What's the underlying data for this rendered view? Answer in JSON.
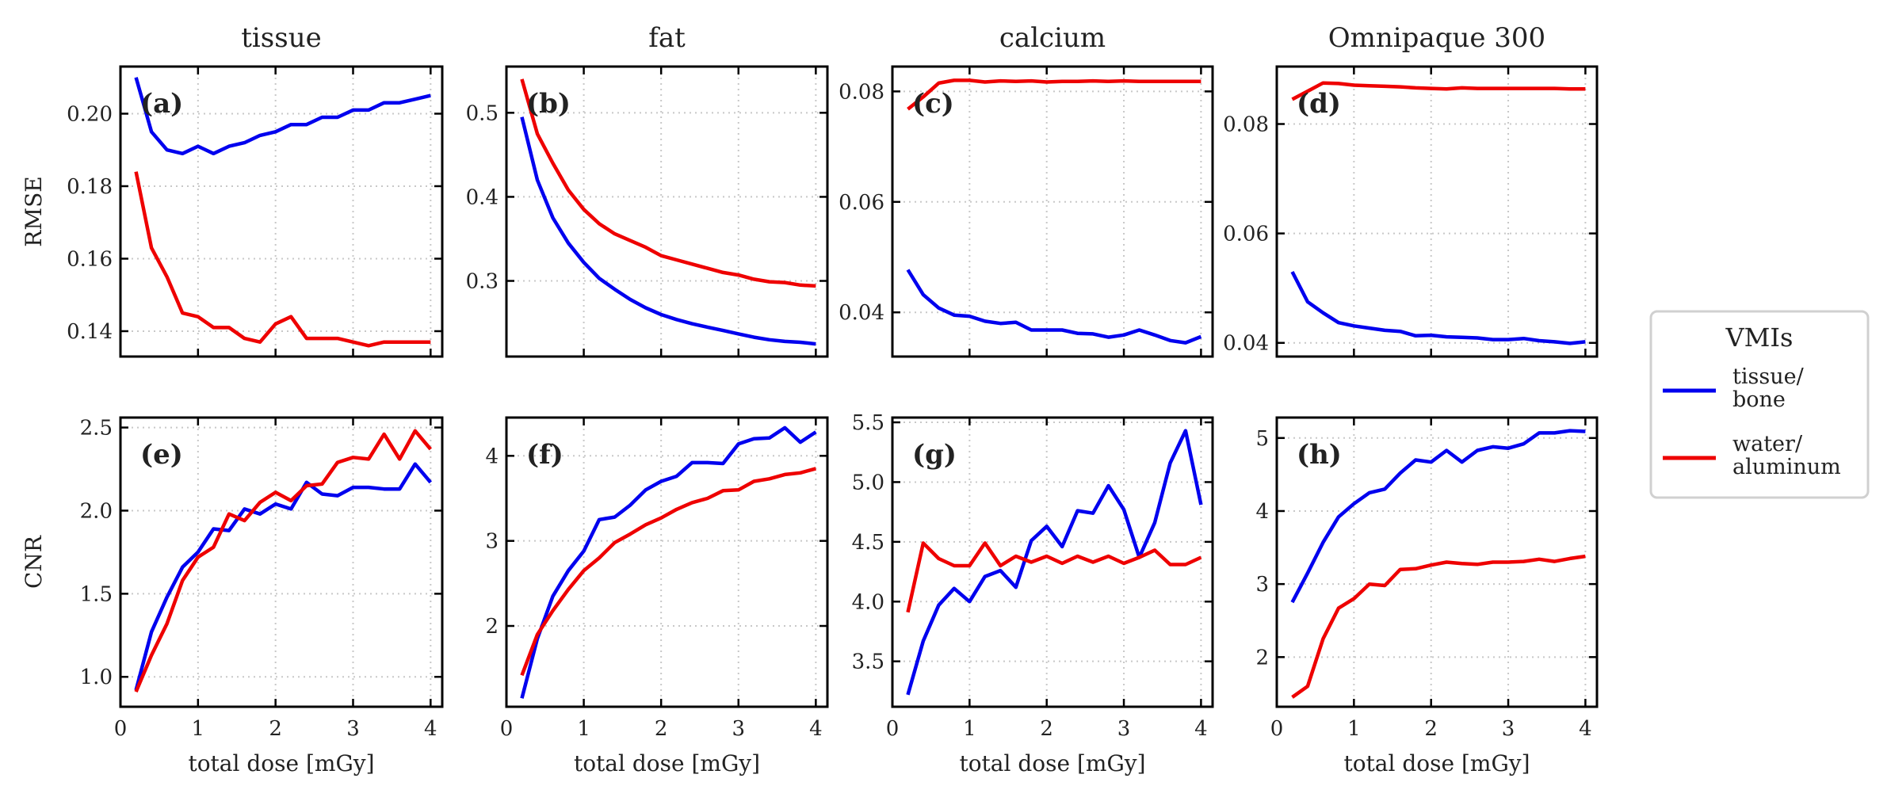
{
  "chart_data": {
    "type": "line",
    "legend": {
      "title": "VMIs",
      "placement": "right",
      "entries": [
        {
          "label_lines": [
            "tissue/",
            "bone"
          ],
          "color": "#0000ee"
        },
        {
          "label_lines": [
            "water/",
            "aluminum"
          ],
          "color": "#ee0000"
        }
      ]
    },
    "x_label": "total dose [mGy]",
    "grid": true,
    "panels": [
      {
        "letter": "(a)",
        "title": "tissue",
        "ylabel": "RMSE",
        "xlim": [
          0,
          4.15
        ],
        "ylim": [
          0.133,
          0.213
        ],
        "yticks": [
          0.14,
          0.16,
          0.18,
          0.2
        ],
        "ytick_labels": [
          "0.14",
          "0.16",
          "0.18",
          "0.20"
        ],
        "xticks": [
          0,
          1,
          2,
          3,
          4
        ],
        "xtick_labels": [],
        "series": [
          {
            "color": "#0000ee",
            "x": [
              0.2,
              0.4,
              0.6,
              0.8,
              1.0,
              1.2,
              1.4,
              1.6,
              1.8,
              2.0,
              2.2,
              2.4,
              2.6,
              2.8,
              3.0,
              3.2,
              3.4,
              3.6,
              3.8,
              4.0
            ],
            "y": [
              0.21,
              0.195,
              0.19,
              0.189,
              0.191,
              0.189,
              0.191,
              0.192,
              0.194,
              0.195,
              0.197,
              0.197,
              0.199,
              0.199,
              0.201,
              0.201,
              0.203,
              0.203,
              0.204,
              0.205
            ]
          },
          {
            "color": "#ee0000",
            "x": [
              0.2,
              0.4,
              0.6,
              0.8,
              1.0,
              1.2,
              1.4,
              1.6,
              1.8,
              2.0,
              2.2,
              2.4,
              2.6,
              2.8,
              3.0,
              3.2,
              3.4,
              3.6,
              3.8,
              4.0
            ],
            "y": [
              0.184,
              0.163,
              0.155,
              0.145,
              0.144,
              0.141,
              0.141,
              0.138,
              0.137,
              0.142,
              0.144,
              0.138,
              0.138,
              0.138,
              0.137,
              0.136,
              0.137,
              0.137,
              0.137,
              0.137
            ]
          }
        ]
      },
      {
        "letter": "(b)",
        "title": "fat",
        "ylabel": "",
        "xlim": [
          0,
          4.15
        ],
        "ylim": [
          0.21,
          0.555
        ],
        "yticks": [
          0.3,
          0.4,
          0.5
        ],
        "ytick_labels": [
          "0.3",
          "0.4",
          "0.5"
        ],
        "xticks": [
          0,
          1,
          2,
          3,
          4
        ],
        "xtick_labels": [],
        "series": [
          {
            "color": "#0000ee",
            "x": [
              0.2,
              0.4,
              0.6,
              0.8,
              1.0,
              1.2,
              1.4,
              1.6,
              1.8,
              2.0,
              2.2,
              2.4,
              2.6,
              2.8,
              3.0,
              3.2,
              3.4,
              3.6,
              3.8,
              4.0
            ],
            "y": [
              0.495,
              0.42,
              0.375,
              0.345,
              0.322,
              0.303,
              0.29,
              0.278,
              0.268,
              0.26,
              0.254,
              0.249,
              0.245,
              0.241,
              0.237,
              0.233,
              0.23,
              0.228,
              0.227,
              0.225
            ]
          },
          {
            "color": "#ee0000",
            "x": [
              0.2,
              0.4,
              0.6,
              0.8,
              1.0,
              1.2,
              1.4,
              1.6,
              1.8,
              2.0,
              2.2,
              2.4,
              2.6,
              2.8,
              3.0,
              3.2,
              3.4,
              3.6,
              3.8,
              4.0
            ],
            "y": [
              0.54,
              0.475,
              0.44,
              0.408,
              0.385,
              0.368,
              0.356,
              0.348,
              0.34,
              0.33,
              0.325,
              0.32,
              0.315,
              0.31,
              0.307,
              0.302,
              0.299,
              0.298,
              0.295,
              0.294
            ]
          }
        ]
      },
      {
        "letter": "(c)",
        "title": "calcium",
        "ylabel": "",
        "xlim": [
          0,
          4.15
        ],
        "ylim": [
          0.032,
          0.0845
        ],
        "yticks": [
          0.04,
          0.06,
          0.08
        ],
        "ytick_labels": [
          "0.04",
          "0.06",
          "0.08"
        ],
        "xticks": [
          0,
          1,
          2,
          3,
          4
        ],
        "xtick_labels": [],
        "series": [
          {
            "color": "#0000ee",
            "x": [
              0.2,
              0.4,
              0.6,
              0.8,
              1.0,
              1.2,
              1.4,
              1.6,
              1.8,
              2.0,
              2.2,
              2.4,
              2.6,
              2.8,
              3.0,
              3.2,
              3.4,
              3.6,
              3.8,
              4.0
            ],
            "y": [
              0.0477,
              0.0432,
              0.0408,
              0.0395,
              0.0393,
              0.0384,
              0.038,
              0.0382,
              0.0368,
              0.0368,
              0.0368,
              0.0362,
              0.0361,
              0.0355,
              0.0359,
              0.0368,
              0.0359,
              0.0349,
              0.0345,
              0.0356
            ]
          },
          {
            "color": "#ee0000",
            "x": [
              0.2,
              0.4,
              0.6,
              0.8,
              1.0,
              1.2,
              1.4,
              1.6,
              1.8,
              2.0,
              2.2,
              2.4,
              2.6,
              2.8,
              3.0,
              3.2,
              3.4,
              3.6,
              3.8,
              4.0
            ],
            "y": [
              0.0768,
              0.079,
              0.0815,
              0.082,
              0.082,
              0.0817,
              0.0819,
              0.0818,
              0.0819,
              0.0817,
              0.0818,
              0.0818,
              0.0819,
              0.0818,
              0.0819,
              0.0818,
              0.0818,
              0.0818,
              0.0818,
              0.0818
            ]
          }
        ]
      },
      {
        "letter": "(d)",
        "title": "Omnipaque 300",
        "ylabel": "",
        "xlim": [
          0,
          4.15
        ],
        "ylim": [
          0.0375,
          0.0905
        ],
        "yticks": [
          0.04,
          0.06,
          0.08
        ],
        "ytick_labels": [
          "0.04",
          "0.06",
          "0.08"
        ],
        "xticks": [
          0,
          1,
          2,
          3,
          4
        ],
        "xtick_labels": [],
        "series": [
          {
            "color": "#0000ee",
            "x": [
              0.2,
              0.4,
              0.6,
              0.8,
              1.0,
              1.2,
              1.4,
              1.6,
              1.8,
              2.0,
              2.2,
              2.4,
              2.6,
              2.8,
              3.0,
              3.2,
              3.4,
              3.6,
              3.8,
              4.0
            ],
            "y": [
              0.053,
              0.0475,
              0.0455,
              0.0437,
              0.0431,
              0.0427,
              0.0423,
              0.0421,
              0.0413,
              0.0414,
              0.0411,
              0.041,
              0.0409,
              0.0406,
              0.0406,
              0.0408,
              0.0404,
              0.0402,
              0.0399,
              0.0402
            ]
          },
          {
            "color": "#ee0000",
            "x": [
              0.2,
              0.4,
              0.6,
              0.8,
              1.0,
              1.2,
              1.4,
              1.6,
              1.8,
              2.0,
              2.2,
              2.4,
              2.6,
              2.8,
              3.0,
              3.2,
              3.4,
              3.6,
              3.8,
              4.0
            ],
            "y": [
              0.0845,
              0.086,
              0.0875,
              0.0874,
              0.0871,
              0.087,
              0.0869,
              0.0868,
              0.0866,
              0.0865,
              0.0864,
              0.0866,
              0.0865,
              0.0865,
              0.0865,
              0.0865,
              0.0865,
              0.0865,
              0.0864,
              0.0864
            ]
          }
        ]
      },
      {
        "letter": "(e)",
        "title": "",
        "ylabel": "CNR",
        "xlim": [
          0,
          4.15
        ],
        "ylim": [
          0.82,
          2.56
        ],
        "yticks": [
          1.0,
          1.5,
          2.0,
          2.5
        ],
        "ytick_labels": [
          "1.0",
          "1.5",
          "2.0",
          "2.5"
        ],
        "xticks": [
          0,
          1,
          2,
          3,
          4
        ],
        "xtick_labels": [
          "0",
          "1",
          "2",
          "3",
          "4"
        ],
        "series": [
          {
            "color": "#0000ee",
            "x": [
              0.2,
              0.4,
              0.6,
              0.8,
              1.0,
              1.2,
              1.4,
              1.6,
              1.8,
              2.0,
              2.2,
              2.4,
              2.6,
              2.8,
              3.0,
              3.2,
              3.4,
              3.6,
              3.8,
              4.0
            ],
            "y": [
              0.92,
              1.27,
              1.48,
              1.66,
              1.75,
              1.89,
              1.88,
              2.01,
              1.98,
              2.04,
              2.01,
              2.17,
              2.1,
              2.09,
              2.14,
              2.14,
              2.13,
              2.13,
              2.28,
              2.17
            ]
          },
          {
            "color": "#ee0000",
            "x": [
              0.2,
              0.4,
              0.6,
              0.8,
              1.0,
              1.2,
              1.4,
              1.6,
              1.8,
              2.0,
              2.2,
              2.4,
              2.6,
              2.8,
              3.0,
              3.2,
              3.4,
              3.6,
              3.8,
              4.0
            ],
            "y": [
              0.91,
              1.13,
              1.32,
              1.58,
              1.72,
              1.78,
              1.98,
              1.94,
              2.05,
              2.11,
              2.06,
              2.15,
              2.16,
              2.29,
              2.32,
              2.31,
              2.46,
              2.31,
              2.48,
              2.37
            ]
          }
        ]
      },
      {
        "letter": "(f)",
        "title": "",
        "ylabel": "",
        "xlim": [
          0,
          4.15
        ],
        "ylim": [
          1.05,
          4.45
        ],
        "yticks": [
          2,
          3,
          4
        ],
        "ytick_labels": [
          "2",
          "3",
          "4"
        ],
        "xticks": [
          0,
          1,
          2,
          3,
          4
        ],
        "xtick_labels": [
          "0",
          "1",
          "2",
          "3",
          "4"
        ],
        "series": [
          {
            "color": "#0000ee",
            "x": [
              0.2,
              0.4,
              0.6,
              0.8,
              1.0,
              1.2,
              1.4,
              1.6,
              1.8,
              2.0,
              2.2,
              2.4,
              2.6,
              2.8,
              3.0,
              3.2,
              3.4,
              3.6,
              3.8,
              4.0
            ],
            "y": [
              1.15,
              1.85,
              2.35,
              2.65,
              2.88,
              3.25,
              3.28,
              3.42,
              3.6,
              3.7,
              3.76,
              3.92,
              3.92,
              3.91,
              4.14,
              4.2,
              4.21,
              4.33,
              4.16,
              4.28
            ]
          },
          {
            "color": "#ee0000",
            "x": [
              0.2,
              0.4,
              0.6,
              0.8,
              1.0,
              1.2,
              1.4,
              1.6,
              1.8,
              2.0,
              2.2,
              2.4,
              2.6,
              2.8,
              3.0,
              3.2,
              3.4,
              3.6,
              3.8,
              4.0
            ],
            "y": [
              1.42,
              1.9,
              2.18,
              2.43,
              2.65,
              2.8,
              2.98,
              3.08,
              3.19,
              3.27,
              3.37,
              3.45,
              3.5,
              3.59,
              3.6,
              3.7,
              3.73,
              3.78,
              3.8,
              3.85
            ]
          }
        ]
      },
      {
        "letter": "(g)",
        "title": "",
        "ylabel": "",
        "xlim": [
          0,
          4.15
        ],
        "ylim": [
          3.12,
          5.54
        ],
        "yticks": [
          3.5,
          4.0,
          4.5,
          5.0,
          5.5
        ],
        "ytick_labels": [
          "3.5",
          "4.0",
          "4.5",
          "5.0",
          "5.5"
        ],
        "xticks": [
          0,
          1,
          2,
          3,
          4
        ],
        "xtick_labels": [
          "0",
          "1",
          "2",
          "3",
          "4"
        ],
        "series": [
          {
            "color": "#0000ee",
            "x": [
              0.2,
              0.4,
              0.6,
              0.8,
              1.0,
              1.2,
              1.4,
              1.6,
              1.8,
              2.0,
              2.2,
              2.4,
              2.6,
              2.8,
              3.0,
              3.2,
              3.4,
              3.6,
              3.8,
              4.0
            ],
            "y": [
              3.22,
              3.67,
              3.97,
              4.11,
              4.0,
              4.21,
              4.26,
              4.12,
              4.51,
              4.63,
              4.46,
              4.76,
              4.74,
              4.97,
              4.77,
              4.37,
              4.66,
              5.16,
              5.43,
              4.81
            ]
          },
          {
            "color": "#ee0000",
            "x": [
              0.2,
              0.4,
              0.6,
              0.8,
              1.0,
              1.2,
              1.4,
              1.6,
              1.8,
              2.0,
              2.2,
              2.4,
              2.6,
              2.8,
              3.0,
              3.2,
              3.4,
              3.6,
              3.8,
              4.0
            ],
            "y": [
              3.91,
              4.49,
              4.36,
              4.3,
              4.3,
              4.49,
              4.3,
              4.38,
              4.33,
              4.38,
              4.32,
              4.38,
              4.33,
              4.38,
              4.32,
              4.37,
              4.43,
              4.31,
              4.31,
              4.37
            ]
          }
        ]
      },
      {
        "letter": "(h)",
        "title": "",
        "ylabel": "",
        "xlim": [
          0,
          4.15
        ],
        "ylim": [
          1.32,
          5.28
        ],
        "yticks": [
          2,
          3,
          4,
          5
        ],
        "ytick_labels": [
          "2",
          "3",
          "4",
          "5"
        ],
        "xticks": [
          0,
          1,
          2,
          3,
          4
        ],
        "xtick_labels": [
          "0",
          "1",
          "2",
          "3",
          "4"
        ],
        "series": [
          {
            "color": "#0000ee",
            "x": [
              0.2,
              0.4,
              0.6,
              0.8,
              1.0,
              1.2,
              1.4,
              1.6,
              1.8,
              2.0,
              2.2,
              2.4,
              2.6,
              2.8,
              3.0,
              3.2,
              3.4,
              3.6,
              3.8,
              4.0
            ],
            "y": [
              2.75,
              3.15,
              3.57,
              3.92,
              4.1,
              4.25,
              4.3,
              4.52,
              4.7,
              4.67,
              4.83,
              4.67,
              4.83,
              4.88,
              4.86,
              4.92,
              5.07,
              5.07,
              5.1,
              5.09
            ]
          },
          {
            "color": "#ee0000",
            "x": [
              0.2,
              0.4,
              0.6,
              0.8,
              1.0,
              1.2,
              1.4,
              1.6,
              1.8,
              2.0,
              2.2,
              2.4,
              2.6,
              2.8,
              3.0,
              3.2,
              3.4,
              3.6,
              3.8,
              4.0
            ],
            "y": [
              1.45,
              1.6,
              2.25,
              2.67,
              2.8,
              3.0,
              2.98,
              3.2,
              3.21,
              3.26,
              3.3,
              3.28,
              3.27,
              3.3,
              3.3,
              3.31,
              3.34,
              3.31,
              3.35,
              3.38
            ]
          }
        ]
      }
    ]
  }
}
